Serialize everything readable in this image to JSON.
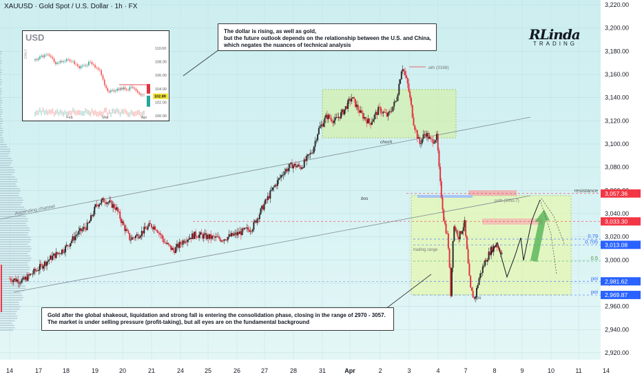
{
  "header": {
    "title": "XAUUSD · Gold Spot / U.S. Dollar · 1h · FX"
  },
  "callouts": {
    "top": [
      "The dollar is rising, as well as gold,",
      "but the future outlook depends on the relationship between the U.S. and China,",
      "which negates the nuances of technical analysis"
    ],
    "bottom": [
      "Gold after the global shakeout, liquidation and strong fall is entering the consolidation phase, closing in the range of 2970 - 3057.",
      "The market is under selling pressure (profit-taking), but all eyes are on the fundamental background"
    ]
  },
  "logo": {
    "main": "RLinda",
    "sub": "TRADING"
  },
  "inset": {
    "title": "USD",
    "side_label": "DAILY",
    "y_ticks": [
      "110.00",
      "108.00",
      "106.00",
      "104.00",
      "102.00",
      "100.00"
    ],
    "current_tag": "102.89",
    "x_ticks": [
      "Feb",
      "Mar",
      "Apr"
    ]
  },
  "chart_data": {
    "type": "candlestick",
    "title": "XAUUSD · Gold Spot / U.S. Dollar · 1h · FX",
    "ylim": [
      2910,
      3225
    ],
    "y_ticks": [
      3220,
      3200,
      3180,
      3160,
      3140,
      3120,
      3100,
      3080,
      3060,
      3040,
      3020,
      3000,
      2980,
      2960,
      2940,
      2920
    ],
    "y_tick_labels": [
      "3,220.00",
      "3,200.00",
      "3,180.00",
      "3,160.00",
      "3,140.00",
      "3,120.00",
      "3,100.00",
      "3,080.00",
      "3,060.00",
      "3,040.00",
      "3,020.00",
      "3,000.00",
      "2,980.00",
      "2,960.00",
      "2,940.00",
      "2,920.00"
    ],
    "x_ticks": [
      "14",
      "17",
      "18",
      "19",
      "20",
      "21",
      "24",
      "25",
      "26",
      "27",
      "28",
      "31",
      "Apr",
      "2",
      "3",
      "4",
      "7",
      "8",
      "9",
      "10",
      "11",
      "14"
    ],
    "price_path": [
      [
        0,
        2984
      ],
      [
        0.5,
        2982
      ],
      [
        1,
        2992
      ],
      [
        1.5,
        3002
      ],
      [
        2,
        3010
      ],
      [
        2.4,
        3022
      ],
      [
        2.8,
        3030
      ],
      [
        3.1,
        3048
      ],
      [
        3.4,
        3052
      ],
      [
        3.8,
        3045
      ],
      [
        4.1,
        3028
      ],
      [
        4.3,
        3018
      ],
      [
        4.6,
        3022
      ],
      [
        5,
        3030
      ],
      [
        5.2,
        3028
      ],
      [
        5.5,
        3015
      ],
      [
        5.8,
        3008
      ],
      [
        6.2,
        3018
      ],
      [
        6.6,
        3022
      ],
      [
        7,
        3020
      ],
      [
        7.5,
        3018
      ],
      [
        8,
        3022
      ],
      [
        8.6,
        3028
      ],
      [
        8.9,
        3042
      ],
      [
        9.3,
        3060
      ],
      [
        9.7,
        3076
      ],
      [
        10,
        3082
      ],
      [
        10.3,
        3080
      ],
      [
        10.7,
        3094
      ],
      [
        10.9,
        3112
      ],
      [
        11.2,
        3124
      ],
      [
        11.5,
        3120
      ],
      [
        11.8,
        3128
      ],
      [
        12.1,
        3140
      ],
      [
        12.4,
        3126
      ],
      [
        12.7,
        3118
      ],
      [
        13,
        3130
      ],
      [
        13.3,
        3124
      ],
      [
        13.6,
        3138
      ],
      [
        13.8,
        3168
      ],
      [
        14,
        3150
      ],
      [
        14.2,
        3118
      ],
      [
        14.4,
        3100
      ],
      [
        14.6,
        3110
      ],
      [
        14.8,
        3102
      ],
      [
        15,
        3106
      ],
      [
        15.1,
        3070
      ],
      [
        15.25,
        3035
      ],
      [
        15.4,
        3018
      ],
      [
        15.5,
        2970
      ],
      [
        15.6,
        3030
      ],
      [
        15.8,
        3020
      ],
      [
        16,
        3032
      ],
      [
        16.2,
        2975
      ],
      [
        16.35,
        2966
      ],
      [
        16.5,
        2984
      ],
      [
        16.7,
        2998
      ],
      [
        16.9,
        3008
      ],
      [
        17.1,
        3014
      ],
      [
        17.3,
        3006
      ]
    ],
    "levels": [
      {
        "label": "resistance",
        "price": 3057.36,
        "tag": "3,057.36",
        "color": "#f23645"
      },
      {
        "label": "",
        "price": 3033.3,
        "tag": "3,033.30",
        "color": "#f23645"
      },
      {
        "label": "0.79",
        "price": 3018.0,
        "tag": "",
        "color": "#2962ff"
      },
      {
        "label": "0.705",
        "price": 3013.08,
        "tag": "3,013.08",
        "color": "#2962ff"
      },
      {
        "label": "0.5",
        "price": 2999.0,
        "tag": "",
        "color": "#4caf50"
      },
      {
        "label": "poi",
        "price": 2981.62,
        "tag": "2,981.62",
        "color": "#2962ff"
      },
      {
        "label": "poi",
        "price": 2969.87,
        "tag": "2,969.87",
        "color": "#2962ff"
      }
    ],
    "annotations": [
      "Ascending channel",
      "ath (3168)",
      "choch",
      "bos",
      "path (3055.7)",
      "trading range",
      "bos"
    ]
  }
}
